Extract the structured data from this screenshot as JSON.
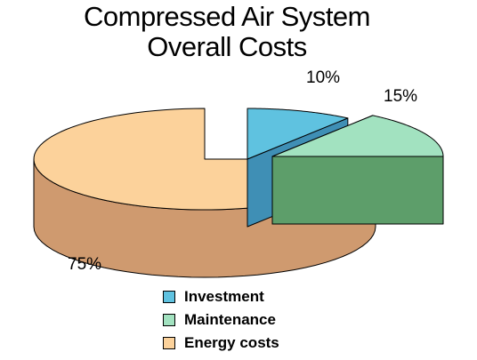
{
  "chart_data": {
    "type": "pie",
    "title_lines": [
      "Compressed Air System",
      "Overall Costs"
    ],
    "categories": [
      "Investment",
      "Maintenance",
      "Energy costs"
    ],
    "values": [
      10,
      15,
      75
    ],
    "value_labels": [
      "10%",
      "15%",
      "75%"
    ],
    "colors": {
      "Investment": {
        "top": "#5fc2e0",
        "side": "#3f8fb5"
      },
      "Maintenance": {
        "top": "#a2e2c0",
        "side": "#5d9e6a"
      },
      "Energy costs": {
        "top": "#fcd29b",
        "side": "#cf9a6f"
      }
    },
    "style": "3d-exploded",
    "legend": {
      "placement": "bottom",
      "items": [
        {
          "label": "Investment",
          "color": "#5fc2e0"
        },
        {
          "label": "Maintenance",
          "color": "#a2e2c0"
        },
        {
          "label": "Energy costs",
          "color": "#fcd29b"
        }
      ]
    }
  }
}
